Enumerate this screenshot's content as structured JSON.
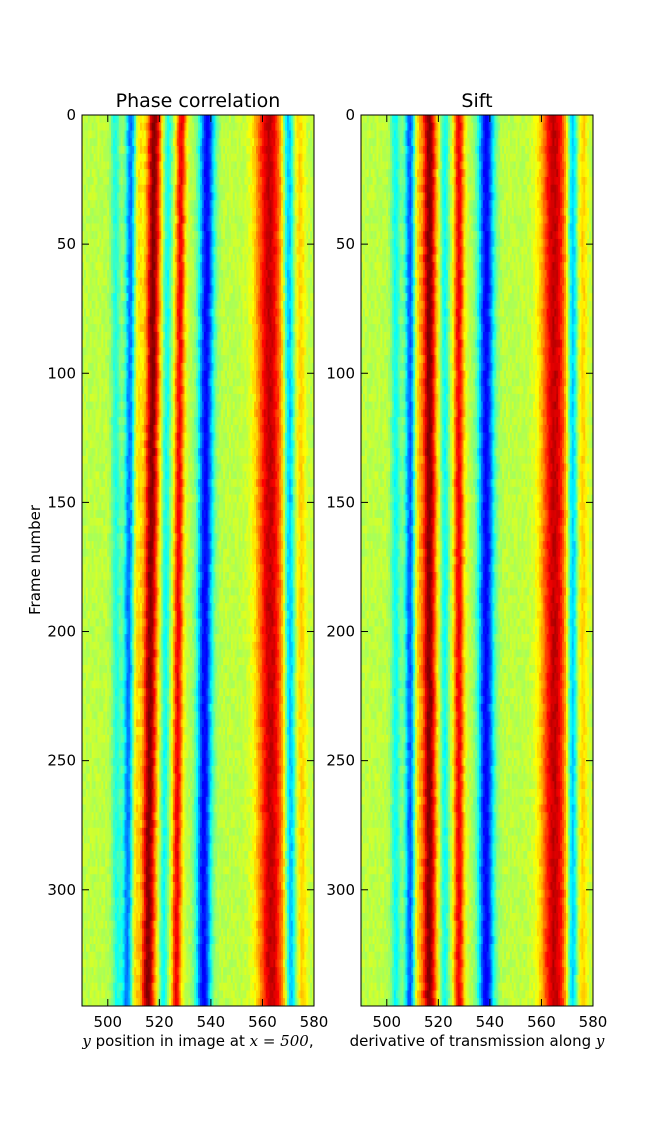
{
  "chart_data": [
    {
      "type": "heatmap",
      "title": "Phase correlation",
      "xlabel_parts": [
        {
          "text": "y",
          "math": true
        },
        {
          "text": " position in image at ",
          "math": false
        },
        {
          "text": "x = 500",
          "math": true
        },
        {
          "text": ",",
          "math": false
        }
      ],
      "ylabel": "Frame number",
      "colormap": "jet",
      "xlim": [
        490,
        580
      ],
      "ylim": [
        0,
        345
      ],
      "y_inverted": true,
      "x_ticks": [
        "500",
        "520",
        "540",
        "560",
        "580"
      ],
      "x_tick_values": [
        500,
        520,
        540,
        560,
        580
      ],
      "y_ticks": [
        "0",
        "50",
        "100",
        "150",
        "200",
        "250",
        "300"
      ],
      "y_tick_values": [
        0,
        50,
        100,
        150,
        200,
        250,
        300
      ],
      "value_range": [
        -1,
        1
      ],
      "bands": [
        {
          "center_start": 503.0,
          "center_end": 503.5,
          "width": 1.3,
          "value": -0.35
        },
        {
          "center_start": 509.0,
          "center_end": 507.5,
          "width": 1.4,
          "value": -0.75
        },
        {
          "center_start": 512.0,
          "center_end": 510.5,
          "width": 1.2,
          "value": 0.25
        },
        {
          "center_start": 518.0,
          "center_end": 515.5,
          "width": 1.9,
          "value": 1.0
        },
        {
          "center_start": 523.5,
          "center_end": 521.5,
          "width": 1.2,
          "value": -0.4
        },
        {
          "center_start": 528.5,
          "center_end": 526.5,
          "width": 1.3,
          "value": 0.75
        },
        {
          "center_start": 538.5,
          "center_end": 537.0,
          "width": 2.1,
          "value": -1.0
        },
        {
          "center_start": 562.5,
          "center_end": 563.5,
          "width": 3.6,
          "value": 0.85
        },
        {
          "center_start": 570.0,
          "center_end": 571.0,
          "width": 1.4,
          "value": -0.65
        },
        {
          "center_start": 574.5,
          "center_end": 575.5,
          "width": 1.4,
          "value": 0.25
        }
      ]
    },
    {
      "type": "heatmap",
      "title": "Sift",
      "xlabel_parts": [
        {
          "text": "derivative of transmission along ",
          "math": false
        },
        {
          "text": "y",
          "math": true
        }
      ],
      "ylabel": "",
      "colormap": "jet",
      "xlim": [
        490,
        580
      ],
      "ylim": [
        0,
        345
      ],
      "y_inverted": true,
      "x_ticks": [
        "500",
        "520",
        "540",
        "560",
        "580"
      ],
      "x_tick_values": [
        500,
        520,
        540,
        560,
        580
      ],
      "y_ticks": [
        "0",
        "50",
        "100",
        "150",
        "200",
        "250",
        "300"
      ],
      "y_tick_values": [
        0,
        50,
        100,
        150,
        200,
        250,
        300
      ],
      "value_range": [
        -1,
        1
      ],
      "bands": [
        {
          "center_start": 503.5,
          "center_end": 503.5,
          "width": 1.3,
          "value": -0.4
        },
        {
          "center_start": 509.0,
          "center_end": 509.0,
          "width": 1.4,
          "value": -0.8
        },
        {
          "center_start": 512.0,
          "center_end": 512.0,
          "width": 1.2,
          "value": 0.25
        },
        {
          "center_start": 516.5,
          "center_end": 516.5,
          "width": 1.9,
          "value": 1.0
        },
        {
          "center_start": 522.5,
          "center_end": 522.5,
          "width": 1.2,
          "value": -0.4
        },
        {
          "center_start": 528.0,
          "center_end": 528.0,
          "width": 1.4,
          "value": 0.75
        },
        {
          "center_start": 538.5,
          "center_end": 538.5,
          "width": 2.2,
          "value": -1.0
        },
        {
          "center_start": 565.0,
          "center_end": 565.0,
          "width": 3.6,
          "value": 0.85
        },
        {
          "center_start": 572.0,
          "center_end": 572.0,
          "width": 1.4,
          "value": -0.65
        },
        {
          "center_start": 576.0,
          "center_end": 576.0,
          "width": 1.4,
          "value": 0.25
        }
      ]
    }
  ]
}
